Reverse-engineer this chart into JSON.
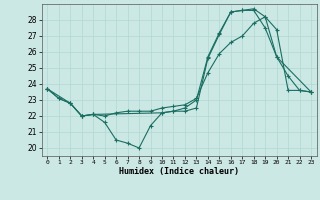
{
  "xlabel": "Humidex (Indice chaleur)",
  "background_color": "#cce8e4",
  "grid_color": "#b0d8d2",
  "line_color": "#1a6e62",
  "xlim": [
    -0.5,
    23.5
  ],
  "ylim": [
    19.5,
    29.0
  ],
  "yticks": [
    20,
    21,
    22,
    23,
    24,
    25,
    26,
    27,
    28
  ],
  "xticks": [
    0,
    1,
    2,
    3,
    4,
    5,
    6,
    7,
    8,
    9,
    10,
    11,
    12,
    13,
    14,
    15,
    16,
    17,
    18,
    19,
    20,
    21,
    22,
    23
  ],
  "line1_x": [
    0,
    1,
    2,
    3,
    4,
    5,
    6,
    7,
    8,
    9,
    10,
    11,
    12,
    13,
    14,
    15,
    16,
    17,
    18,
    19,
    20,
    21,
    22,
    23
  ],
  "line1_y": [
    23.7,
    23.1,
    22.8,
    22.0,
    22.1,
    21.6,
    20.5,
    20.3,
    20.0,
    21.4,
    22.2,
    22.3,
    22.3,
    22.5,
    25.6,
    27.1,
    28.5,
    28.6,
    28.6,
    27.5,
    25.7,
    24.5,
    23.6,
    23.5
  ],
  "line2_x": [
    0,
    1,
    2,
    3,
    4,
    5,
    6,
    7,
    8,
    9,
    10,
    11,
    12,
    13,
    14,
    15,
    16,
    17,
    18,
    19,
    20,
    21,
    22,
    23
  ],
  "line2_y": [
    23.7,
    23.1,
    22.8,
    22.0,
    22.1,
    22.0,
    22.2,
    22.3,
    22.3,
    22.3,
    22.5,
    22.6,
    22.7,
    23.1,
    24.7,
    25.9,
    26.6,
    27.0,
    27.8,
    28.2,
    27.4,
    23.6,
    23.6,
    23.5
  ],
  "line3_x": [
    0,
    2,
    3,
    4,
    10,
    11,
    12,
    13,
    14,
    15,
    16,
    17,
    18,
    19,
    20,
    23
  ],
  "line3_y": [
    23.7,
    22.8,
    22.0,
    22.1,
    22.2,
    22.3,
    22.5,
    23.0,
    25.7,
    27.2,
    28.5,
    28.6,
    28.7,
    28.2,
    25.7,
    23.5
  ]
}
